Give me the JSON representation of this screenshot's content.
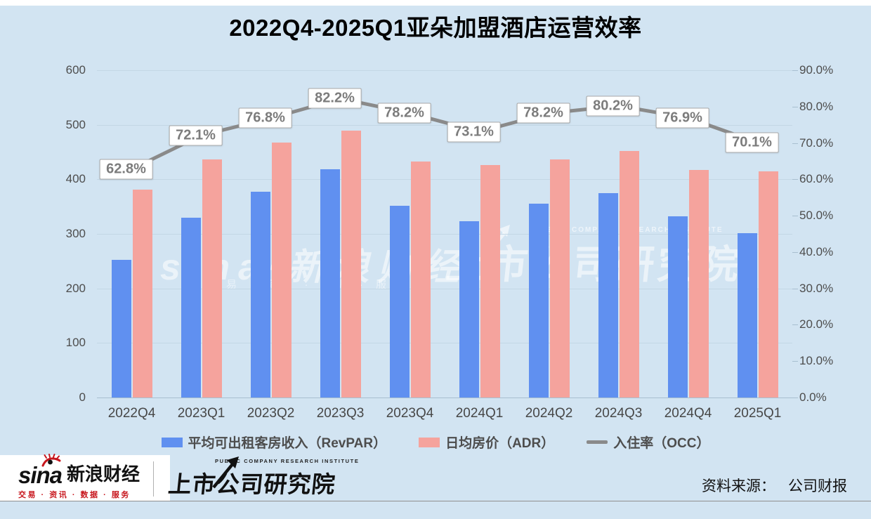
{
  "title": "2022Q4-2025Q1亚朵加盟酒店运营效率",
  "colors": {
    "background": "#d2e4f2",
    "revpar_bar": "#6090f0",
    "adr_bar": "#f5a39d",
    "occ_line": "#8a8a8a",
    "sina_red": "#c7161d"
  },
  "chart_data": {
    "type": "bar",
    "subtype": "combo-bar-line-dual-axis",
    "title": "2022Q4-2025Q1亚朵加盟酒店运营效率",
    "categories": [
      "2022Q4",
      "2023Q1",
      "2023Q2",
      "2023Q3",
      "2023Q4",
      "2024Q1",
      "2024Q2",
      "2024Q3",
      "2024Q4",
      "2025Q1"
    ],
    "series": [
      {
        "name": "平均可出租客房收入（RevPAR）",
        "type": "bar",
        "axis": "left",
        "color": "#6090f0",
        "values": [
          253,
          329,
          377,
          418,
          352,
          323,
          355,
          375,
          332,
          301
        ]
      },
      {
        "name": "日均房价（ADR）",
        "type": "bar",
        "axis": "left",
        "color": "#f5a39d",
        "values": [
          381,
          436,
          467,
          489,
          432,
          426,
          436,
          452,
          417,
          414
        ]
      },
      {
        "name": "入住率（OCC）",
        "type": "line",
        "axis": "right",
        "color": "#8a8a8a",
        "values": [
          62.8,
          72.1,
          76.8,
          82.2,
          78.2,
          73.1,
          78.2,
          80.2,
          76.9,
          70.1
        ],
        "point_labels": [
          "62.8%",
          "72.1%",
          "76.8%",
          "82.2%",
          "78.2%",
          "73.1%",
          "78.2%",
          "80.2%",
          "76.9%",
          "70.1%"
        ]
      }
    ],
    "left_axis": {
      "min": 0,
      "max": 600,
      "ticks": [
        "600",
        "500",
        "400",
        "300",
        "200",
        "100",
        "0"
      ]
    },
    "right_axis": {
      "min": 0,
      "max": 90,
      "ticks": [
        "90.0%",
        "80.0%",
        "70.0%",
        "60.0%",
        "50.0%",
        "40.0%",
        "30.0%",
        "20.0%",
        "10.0%",
        "0.0%"
      ]
    },
    "grid": true,
    "legend_position": "bottom"
  },
  "legend": {
    "items": [
      {
        "label": "平均可出租客房收入（RevPAR）",
        "swatch": "bar",
        "color": "#6090f0"
      },
      {
        "label": "日均房价（ADR）",
        "swatch": "bar",
        "color": "#f5a39d"
      },
      {
        "label": "入住率（OCC）",
        "swatch": "line",
        "color": "#8a8a8a"
      }
    ]
  },
  "watermarks": {
    "left_main": "sina·新浪财经",
    "left_sub": "交易 · 资讯 · 数据 · 服务",
    "right_caption": "PUBLIC COMPANY RESEARCH INSTITUTE",
    "right_main": "上市公司研究院"
  },
  "footer": {
    "sina": {
      "wordmark": "sina",
      "brand": "新浪财经",
      "tagline": "交易 · 资讯 · 数据 · 服务"
    },
    "institute": {
      "caption": "PUBLIC COMPANY RESEARCH INSTITUTE",
      "name": "上市公司研究院"
    },
    "source_label": "资料来源：",
    "source_value": "公司财报"
  }
}
